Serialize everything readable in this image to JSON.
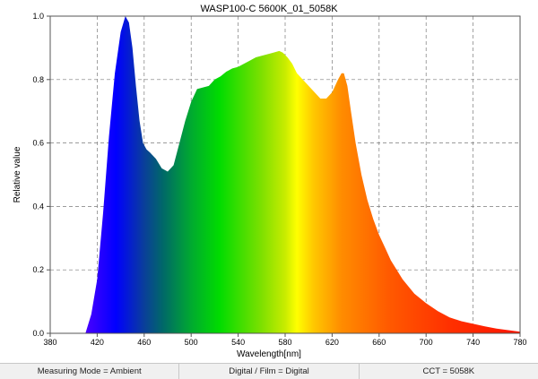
{
  "chart_data": {
    "type": "area",
    "title": "WASP100-C 5600K_01_5058K",
    "xlabel": "Wavelength[nm]",
    "ylabel": "Relative value",
    "xlim": [
      380,
      780
    ],
    "ylim": [
      0,
      1.0
    ],
    "x_ticks": [
      380,
      420,
      460,
      500,
      540,
      580,
      620,
      660,
      700,
      740,
      780
    ],
    "y_ticks": [
      0.0,
      0.2,
      0.4,
      0.6,
      0.8,
      1.0
    ],
    "x_tick_labels": [
      "380",
      "420",
      "460",
      "500",
      "540",
      "580",
      "620",
      "660",
      "700",
      "740",
      "780"
    ],
    "y_tick_labels": [
      "0.0",
      "0.2",
      "0.4",
      "0.6",
      "0.8",
      "1.0"
    ],
    "grid": true,
    "series": [
      {
        "x": [
          410,
          415,
          420,
          425,
          430,
          435,
          440,
          444,
          447,
          450,
          453,
          456,
          459,
          462,
          465,
          470,
          475,
          480,
          485,
          490,
          495,
          500,
          505,
          510,
          515,
          520,
          525,
          530,
          535,
          540,
          545,
          550,
          555,
          560,
          565,
          570,
          575,
          578,
          582,
          586,
          590,
          595,
          600,
          605,
          610,
          615,
          620,
          625,
          628,
          630,
          633,
          636,
          640,
          645,
          650,
          655,
          660,
          665,
          670,
          680,
          690,
          700,
          710,
          720,
          730,
          740,
          750,
          760,
          770,
          780
        ],
        "values": [
          0.0,
          0.06,
          0.17,
          0.38,
          0.62,
          0.82,
          0.95,
          1.0,
          0.98,
          0.9,
          0.78,
          0.67,
          0.6,
          0.58,
          0.57,
          0.55,
          0.52,
          0.51,
          0.53,
          0.6,
          0.67,
          0.73,
          0.77,
          0.775,
          0.78,
          0.8,
          0.81,
          0.825,
          0.835,
          0.84,
          0.85,
          0.86,
          0.87,
          0.875,
          0.88,
          0.885,
          0.89,
          0.885,
          0.87,
          0.85,
          0.82,
          0.8,
          0.78,
          0.76,
          0.74,
          0.74,
          0.76,
          0.8,
          0.82,
          0.82,
          0.78,
          0.7,
          0.6,
          0.5,
          0.42,
          0.36,
          0.31,
          0.27,
          0.23,
          0.17,
          0.125,
          0.095,
          0.07,
          0.05,
          0.038,
          0.03,
          0.022,
          0.015,
          0.01,
          0.005
        ]
      }
    ]
  },
  "status_bar": {
    "measuring_mode": "Measuring Mode = Ambient",
    "digital_film": "Digital / Film = Digital",
    "cct": "CCT = 5058K"
  }
}
